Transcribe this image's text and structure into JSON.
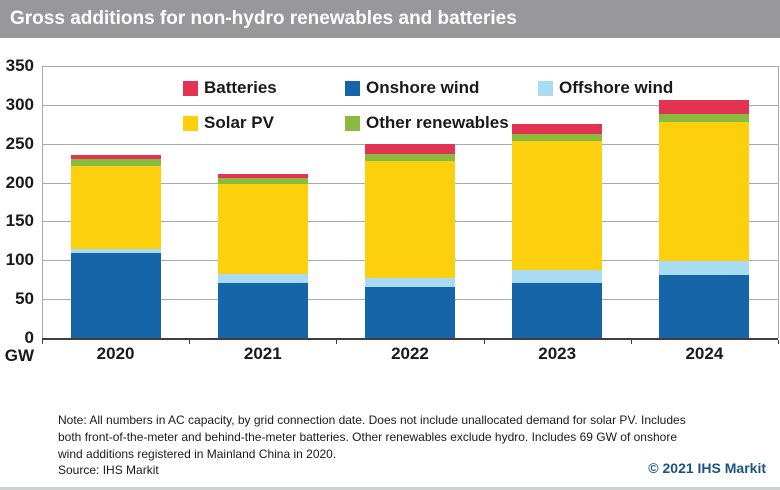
{
  "header": {
    "title": "Gross additions for non-hydro renewables and batteries"
  },
  "chart_data": {
    "type": "bar",
    "stacked": true,
    "title": "Gross additions for non-hydro renewables and batteries",
    "categories": [
      "2020",
      "2021",
      "2022",
      "2023",
      "2024"
    ],
    "series": [
      {
        "name": "Onshore wind",
        "color": "#1565a8",
        "values": [
          110,
          71,
          66,
          71,
          81
        ]
      },
      {
        "name": "Offshore wind",
        "color": "#a9dcf2",
        "values": [
          5,
          11,
          11,
          16,
          18
        ]
      },
      {
        "name": "Solar PV",
        "color": "#fdd00d",
        "values": [
          106,
          116,
          151,
          166,
          179
        ]
      },
      {
        "name": "Other renewables",
        "color": "#8aba3e",
        "values": [
          9,
          8,
          9,
          9,
          10
        ]
      },
      {
        "name": "Batteries",
        "color": "#e23352",
        "values": [
          5,
          5,
          12,
          14,
          18
        ]
      }
    ],
    "totals": [
      235,
      211,
      249,
      276,
      306
    ],
    "y_unit": "GW",
    "ylabel": "GW",
    "xlabel": "",
    "ylim": [
      0,
      350
    ],
    "y_ticks": [
      0,
      50,
      100,
      150,
      200,
      250,
      300,
      350
    ],
    "grid": true,
    "legend_position": "top-inside",
    "legend_rows": [
      [
        "Batteries",
        "Onshore wind",
        "Offshore wind"
      ],
      [
        "Solar PV",
        "Other renewables"
      ]
    ]
  },
  "footer": {
    "note": "Note: All numbers in AC capacity, by grid connection date. Does not include unallocated demand for solar PV. Includes both front-of-the-meter and behind-the-meter batteries. Other renewables exclude hydro. Includes 69 GW of onshore wind additions registered in Mainland China in 2020.",
    "source": "Source: IHS Markit",
    "copyright": "© 2021 IHS Markit"
  },
  "colors": {
    "header_bg": "#98989a",
    "header_text": "#ffffff",
    "copyright_blue": "#1a5187",
    "gridline": "#aaaaaa",
    "axis": "#3f3f3f"
  }
}
